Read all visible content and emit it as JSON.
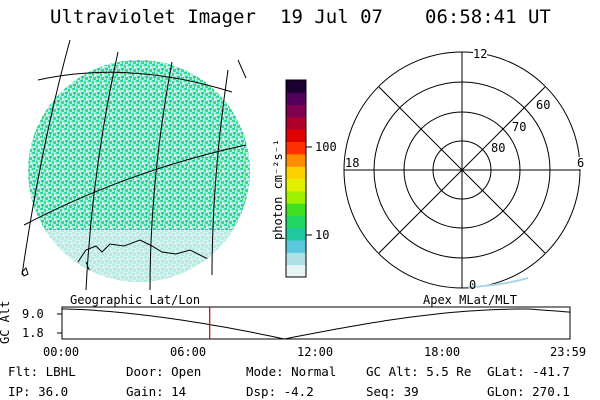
{
  "header": {
    "title": "Ultraviolet Imager",
    "date": "19 Jul 07",
    "time": "06:58:41 UT"
  },
  "colorbar": {
    "unit_label": "photon cm⁻²s⁻¹",
    "ticks": [
      {
        "value": 100,
        "label": "100"
      },
      {
        "value": 10,
        "label": "10"
      }
    ],
    "colors": [
      "#e8f4f4",
      "#b0e0e6",
      "#5ac8dc",
      "#20c8a0",
      "#20d860",
      "#40e020",
      "#a0f000",
      "#e0f000",
      "#ffd000",
      "#ff8c00",
      "#ff3000",
      "#e00000",
      "#b0002a",
      "#800050",
      "#50005a",
      "#1a0030"
    ]
  },
  "polar": {
    "mlt_labels": {
      "top": "12",
      "left": "18",
      "right": "6",
      "bottom": "0"
    },
    "lat_rings": [
      {
        "value": 60,
        "label": "60"
      },
      {
        "value": 70,
        "label": "70"
      },
      {
        "value": 80,
        "label": "80"
      }
    ]
  },
  "left_label": "Geographic Lat/Lon",
  "right_label": "Apex  MLat/MLT",
  "altplot": {
    "ylabel": "GC Alt",
    "yticks": [
      {
        "value": 9.0,
        "label": "9.0"
      },
      {
        "value": 1.8,
        "label": "1.8"
      }
    ],
    "xticks": [
      "00:00",
      "06:00",
      "12:00",
      "18:00",
      "23:59"
    ],
    "marker_time_hours": 6.978
  },
  "info": {
    "flt": "Flt: LBHL",
    "ip": "IP: 36.0",
    "door": "Door: Open",
    "gain": "Gain: 14",
    "mode": "Mode: Normal",
    "dsp": "Dsp:    -4.2",
    "gcalt": "GC Alt: 5.5 Re",
    "seq": "Seq: 39",
    "glat": "GLat: -41.7",
    "glon": "GLon: 270.1"
  }
}
